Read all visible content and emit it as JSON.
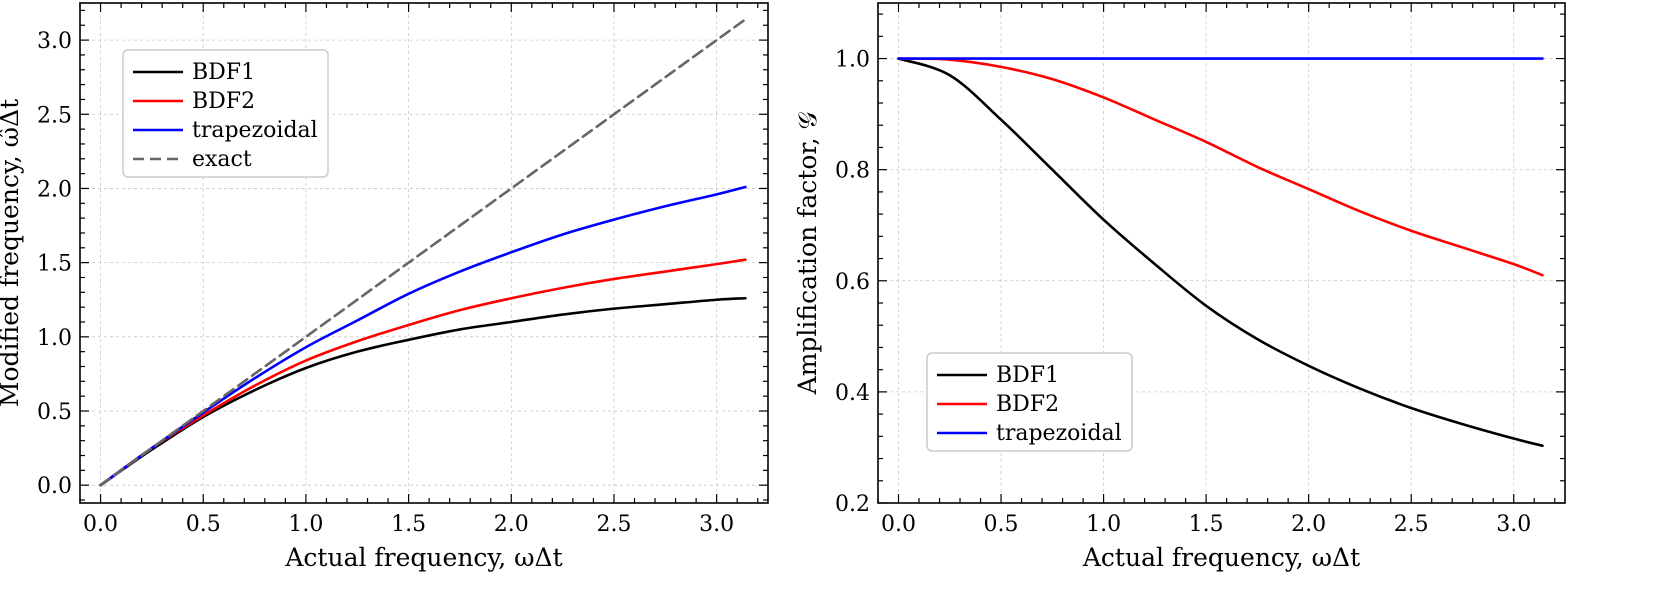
{
  "chart_data": [
    {
      "type": "line",
      "xlabel": "Actual frequency, ωΔt",
      "ylabel": "Modified frequency, ω̂Δt",
      "xlim": [
        -0.1,
        3.25
      ],
      "ylim": [
        -0.12,
        3.25
      ],
      "xticks": [
        "0.0",
        "0.5",
        "1.0",
        "1.5",
        "2.0",
        "2.5",
        "3.0"
      ],
      "yticks": [
        "0.0",
        "0.5",
        "1.0",
        "1.5",
        "2.0",
        "2.5",
        "3.0"
      ],
      "grid": true,
      "legend_position": "upper-left",
      "series": [
        {
          "name": "BDF1",
          "color": "#000000",
          "dash": "solid",
          "x": [
            0,
            0.25,
            0.5,
            0.75,
            1.0,
            1.25,
            1.5,
            1.75,
            2.0,
            2.25,
            2.5,
            2.75,
            3.0,
            3.14
          ],
          "y": [
            0,
            0.24,
            0.46,
            0.64,
            0.79,
            0.9,
            0.98,
            1.05,
            1.1,
            1.15,
            1.19,
            1.22,
            1.25,
            1.26
          ]
        },
        {
          "name": "BDF2",
          "color": "#ff0000",
          "dash": "solid",
          "x": [
            0,
            0.25,
            0.5,
            0.75,
            1.0,
            1.25,
            1.5,
            1.75,
            2.0,
            2.25,
            2.5,
            2.75,
            3.0,
            3.14
          ],
          "y": [
            0,
            0.25,
            0.47,
            0.67,
            0.84,
            0.97,
            1.08,
            1.18,
            1.26,
            1.33,
            1.39,
            1.44,
            1.49,
            1.52
          ]
        },
        {
          "name": "trapezoidal",
          "color": "#0000ff",
          "dash": "solid",
          "x": [
            0,
            0.25,
            0.5,
            0.75,
            1.0,
            1.25,
            1.5,
            1.75,
            2.0,
            2.25,
            2.5,
            2.75,
            3.0,
            3.14
          ],
          "y": [
            0,
            0.25,
            0.49,
            0.72,
            0.93,
            1.11,
            1.29,
            1.44,
            1.57,
            1.69,
            1.79,
            1.88,
            1.96,
            2.01
          ]
        },
        {
          "name": "exact",
          "color": "#666666",
          "dash": "dashed",
          "x": [
            0,
            3.14
          ],
          "y": [
            0,
            3.14
          ]
        }
      ]
    },
    {
      "type": "line",
      "xlabel": "Actual frequency, ωΔt",
      "ylabel": "Amplification factor, 𝒢",
      "xlim": [
        -0.1,
        3.25
      ],
      "ylim": [
        0.2,
        1.1
      ],
      "xticks": [
        "0.0",
        "0.5",
        "1.0",
        "1.5",
        "2.0",
        "2.5",
        "3.0"
      ],
      "yticks": [
        "0.2",
        "0.4",
        "0.6",
        "0.8",
        "1.0"
      ],
      "grid": true,
      "legend_position": "lower-left",
      "series": [
        {
          "name": "BDF1",
          "color": "#000000",
          "dash": "solid",
          "x": [
            0,
            0.25,
            0.5,
            0.75,
            1.0,
            1.25,
            1.5,
            1.75,
            2.0,
            2.25,
            2.5,
            2.75,
            3.0,
            3.14
          ],
          "y": [
            1.0,
            0.97,
            0.89,
            0.8,
            0.71,
            0.63,
            0.555,
            0.495,
            0.447,
            0.406,
            0.371,
            0.342,
            0.316,
            0.303
          ]
        },
        {
          "name": "BDF2",
          "color": "#ff0000",
          "dash": "solid",
          "x": [
            0,
            0.25,
            0.5,
            0.75,
            1.0,
            1.25,
            1.5,
            1.75,
            2.0,
            2.25,
            2.5,
            2.75,
            3.0,
            3.14
          ],
          "y": [
            1.0,
            0.998,
            0.985,
            0.963,
            0.93,
            0.89,
            0.85,
            0.805,
            0.765,
            0.725,
            0.69,
            0.66,
            0.63,
            0.61
          ]
        },
        {
          "name": "trapezoidal",
          "color": "#0000ff",
          "dash": "solid",
          "x": [
            0,
            3.14
          ],
          "y": [
            1.0,
            1.0
          ]
        }
      ]
    }
  ]
}
